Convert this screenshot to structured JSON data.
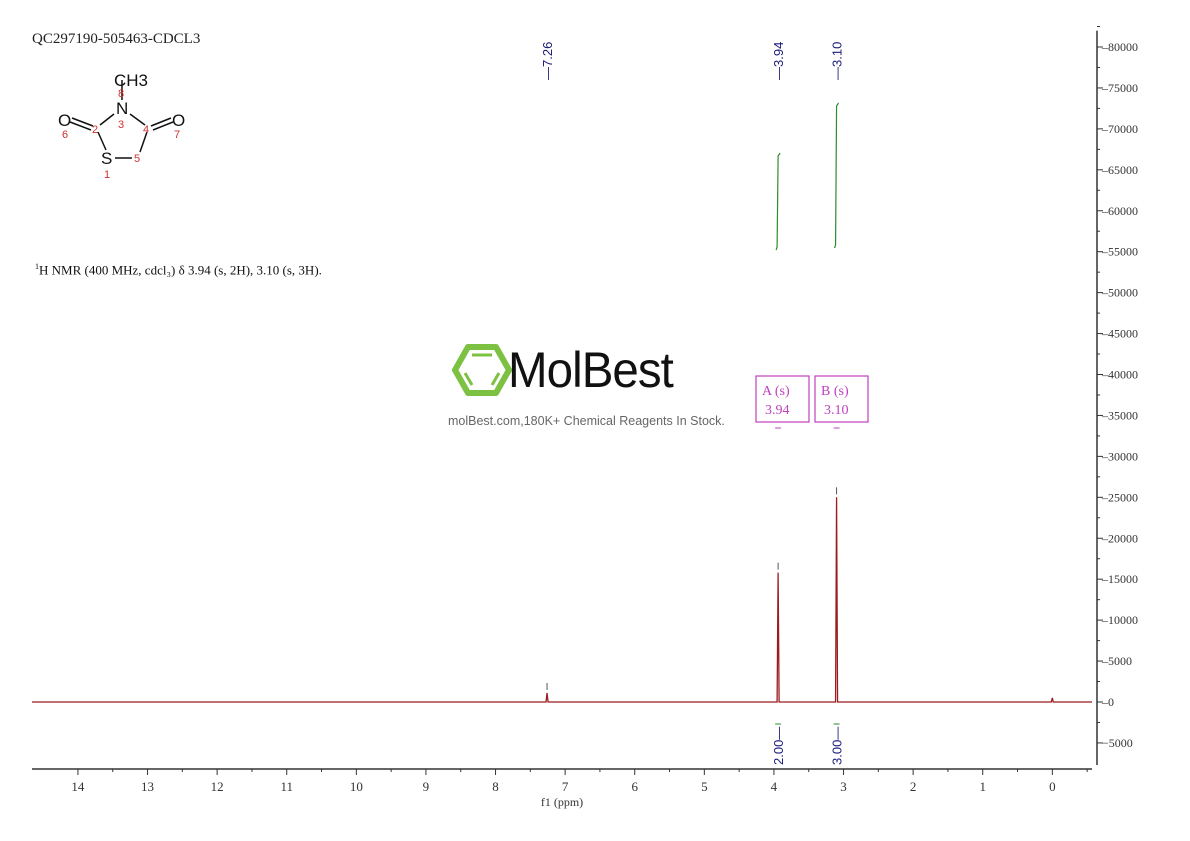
{
  "sample_id": "QC297190-505463-CDCL3",
  "description": "H NMR (400 MHz, cdcl₃) δ 3.94 (s, 2H), 3.10 (s, 3H).",
  "description_superscript": "1",
  "structure": {
    "atoms": [
      "S",
      "N",
      "O",
      "O",
      "CH3"
    ],
    "numbering": [
      "1",
      "2",
      "3",
      "4",
      "5",
      "6",
      "7",
      "8"
    ]
  },
  "logo": {
    "brand": "MolBest",
    "tagline": "molBest.com,180K+ Chemical Reagents In Stock.",
    "color": "#7dc142"
  },
  "chart_data": {
    "type": "line",
    "title": "",
    "xlabel": "f1 (ppm)",
    "ylabel": "",
    "xlim": [
      14.66,
      -0.57
    ],
    "ylim": [
      -7700,
      82000
    ],
    "x_ticks": [
      14,
      13,
      12,
      11,
      10,
      9,
      8,
      7,
      6,
      5,
      4,
      3,
      2,
      1,
      0
    ],
    "y_ticks": [
      80000,
      75000,
      70000,
      65000,
      60000,
      55000,
      50000,
      45000,
      40000,
      35000,
      30000,
      25000,
      20000,
      15000,
      10000,
      5000,
      0,
      -5000
    ],
    "grid": false,
    "spectrum_color": "#9b1b1e",
    "integral_color": "#2e8b2e",
    "label_color": "#1a1a7a",
    "multiplet_box_color": "#c040c0",
    "peaks": [
      {
        "ppm": 7.26,
        "intensity": 1100
      },
      {
        "ppm": 3.94,
        "intensity": 15800
      },
      {
        "ppm": 3.1,
        "intensity": 25000
      },
      {
        "ppm": 0.0,
        "intensity": 500
      }
    ],
    "peak_labels": [
      "7.26",
      "3.94",
      "3.10"
    ],
    "peak_label_ppm": [
      7.26,
      3.94,
      3.1
    ],
    "multiplets": [
      {
        "label": "A (s)",
        "shift": "3.94",
        "ppm": 3.94
      },
      {
        "label": "B (s)",
        "shift": "3.10",
        "ppm": 3.1
      }
    ],
    "integrals": [
      {
        "ppm": 3.94,
        "value": "2.00"
      },
      {
        "ppm": 3.1,
        "value": "3.00"
      }
    ]
  }
}
